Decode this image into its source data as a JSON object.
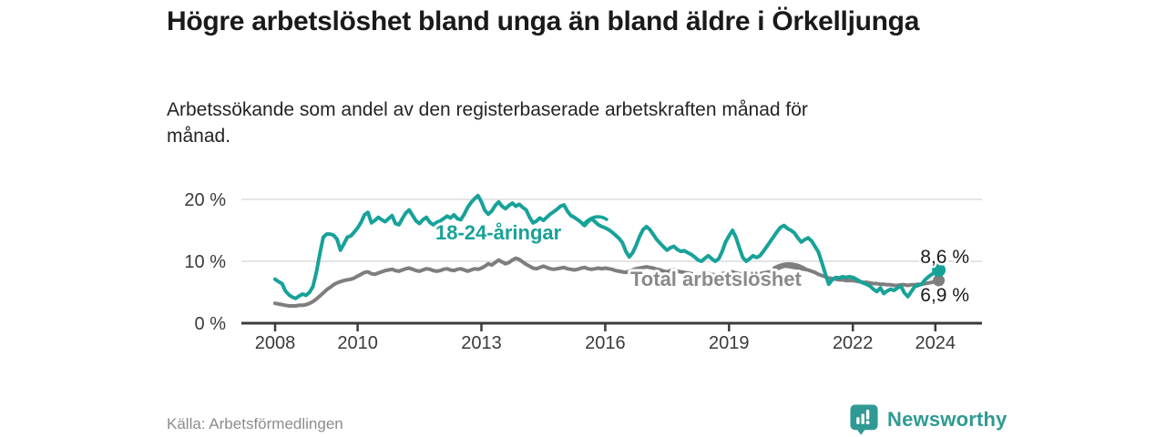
{
  "header": {
    "title": "Högre arbetslöshet bland unga än bland äldre i Örkelljunga",
    "subtitle": "Arbetssökande som andel av den registerbaserade arbetskraften månad för månad."
  },
  "footer": {
    "source": "Källa: Arbetsförmedlingen",
    "brand": "Newsworthy"
  },
  "colors": {
    "accent_teal": "#17A299",
    "line_gray": "#7E7E7E",
    "label_gray": "#8A8A8A",
    "brand_teal": "#2F9A93",
    "text_dark": "#1A1A1A",
    "axis": "#3C3C3C",
    "gridline": "#DBDBDB"
  },
  "chart_data": {
    "type": "line",
    "x_start_year": 2008,
    "x_step_months": 1,
    "x_ticks": [
      2008,
      2010,
      2013,
      2016,
      2019,
      2022,
      2024
    ],
    "y_ticks": [
      {
        "value": 0,
        "label": "0 %"
      },
      {
        "value": 10,
        "label": "10 %"
      },
      {
        "value": 20,
        "label": "20 %"
      }
    ],
    "ylim": [
      0,
      21.5
    ],
    "ylabel": "",
    "xlabel": "",
    "grid": "horizontal",
    "series": [
      {
        "name": "18-24-åringar",
        "color": "#17A299",
        "label_color": "#17A299",
        "end_label": "8,6 %",
        "end_value": 8.6,
        "values": [
          7.1,
          6.7,
          6.4,
          5.2,
          4.6,
          4.2,
          4.0,
          4.4,
          4.7,
          4.5,
          5.0,
          5.9,
          8.2,
          11.2,
          13.9,
          14.4,
          14.4,
          14.2,
          13.6,
          11.8,
          12.8,
          13.9,
          14.1,
          14.7,
          15.4,
          16.3,
          17.5,
          17.9,
          16.2,
          16.6,
          17.1,
          16.7,
          16.4,
          16.9,
          17.4,
          16.1,
          15.9,
          16.9,
          17.8,
          18.3,
          17.4,
          16.5,
          16.1,
          16.7,
          17.1,
          16.3,
          15.9,
          16.3,
          16.5,
          16.9,
          17.3,
          17.0,
          17.5,
          16.9,
          16.7,
          17.6,
          18.7,
          19.5,
          20.1,
          20.6,
          19.6,
          18.2,
          17.6,
          18.1,
          19.0,
          19.6,
          18.9,
          18.5,
          19.0,
          19.4,
          18.9,
          19.2,
          18.7,
          18.3,
          17.1,
          16.2,
          16.5,
          17.0,
          16.6,
          17.1,
          17.6,
          18.0,
          18.4,
          18.9,
          19.1,
          18.1,
          17.4,
          17.1,
          16.7,
          16.3,
          15.8,
          16.4,
          16.9,
          16.4,
          15.9,
          15.6,
          15.4,
          15.1,
          14.7,
          14.2,
          13.7,
          13.0,
          11.6,
          10.7,
          11.4,
          12.6,
          14.0,
          15.1,
          15.6,
          15.1,
          14.3,
          13.5,
          12.9,
          12.3,
          11.8,
          12.2,
          12.4,
          11.9,
          11.6,
          11.7,
          11.4,
          11.1,
          10.7,
          10.2,
          10.0,
          10.5,
          10.9,
          10.4,
          10.0,
          10.4,
          11.6,
          13.1,
          14.1,
          15.0,
          13.9,
          12.2,
          10.6,
          10.0,
          10.4,
          10.9,
          10.6,
          10.9,
          11.6,
          12.4,
          13.2,
          14.0,
          14.8,
          15.5,
          15.8,
          15.3,
          15.0,
          14.6,
          13.8,
          13.1,
          13.5,
          13.8,
          13.3,
          12.4,
          11.5,
          9.8,
          8.0,
          6.3,
          7.0,
          7.4,
          7.3,
          7.5,
          7.4,
          7.5,
          7.4,
          7.1,
          6.8,
          6.5,
          6.3,
          6.0,
          5.5,
          5.1,
          5.7,
          4.8,
          5.2,
          5.5,
          5.3,
          5.7,
          6.0,
          4.9,
          4.3,
          5.1,
          5.9,
          6.1,
          6.3,
          7.0,
          7.5,
          7.9,
          8.2,
          8.6
        ]
      },
      {
        "name": "Total arbetslöshet",
        "color": "#7E7E7E",
        "label_color": "#8A8A8A",
        "end_label": "6,9 %",
        "end_value": 6.9,
        "values": [
          3.2,
          3.1,
          3.0,
          2.9,
          2.8,
          2.8,
          2.8,
          2.9,
          2.9,
          3.0,
          3.2,
          3.5,
          3.9,
          4.4,
          4.9,
          5.4,
          5.8,
          6.2,
          6.5,
          6.7,
          6.9,
          7.0,
          7.1,
          7.3,
          7.6,
          7.9,
          8.2,
          8.3,
          8.0,
          7.9,
          8.1,
          8.3,
          8.5,
          8.6,
          8.7,
          8.5,
          8.4,
          8.6,
          8.8,
          8.9,
          8.7,
          8.5,
          8.4,
          8.6,
          8.8,
          8.7,
          8.5,
          8.4,
          8.5,
          8.7,
          8.8,
          8.6,
          8.5,
          8.7,
          8.8,
          8.6,
          8.4,
          8.6,
          8.8,
          8.7,
          8.9,
          9.2,
          9.6,
          9.4,
          9.8,
          10.2,
          9.9,
          9.6,
          9.8,
          10.2,
          10.5,
          10.3,
          9.9,
          9.5,
          9.2,
          8.9,
          8.8,
          9.0,
          9.2,
          9.0,
          8.8,
          8.7,
          8.8,
          8.9,
          9.0,
          8.8,
          8.7,
          8.6,
          8.7,
          8.9,
          9.0,
          8.8,
          8.7,
          8.8,
          8.9,
          8.8,
          8.9,
          8.8,
          8.7,
          8.5,
          8.4,
          8.3,
          8.2,
          8.4,
          8.6,
          8.8,
          8.9,
          9.0,
          9.1,
          9.0,
          8.9,
          8.7,
          8.6,
          8.4,
          8.3,
          8.5,
          8.6,
          8.4,
          8.3,
          8.2,
          8.1,
          8.0,
          7.9,
          7.8,
          7.7,
          7.9,
          8.0,
          7.9,
          7.8,
          7.9,
          8.0,
          8.1,
          8.2,
          8.3,
          8.1,
          8.0,
          7.9,
          7.8,
          7.9,
          8.0,
          7.9,
          8.0,
          8.1,
          8.2,
          8.3,
          8.5,
          8.8,
          9.0,
          9.2,
          9.2,
          9.1,
          9.0,
          8.9,
          8.8,
          8.7,
          8.6,
          8.4,
          8.2,
          7.9,
          7.7,
          7.5,
          7.3,
          7.2,
          7.1,
          7.0,
          7.0,
          6.9,
          6.9,
          6.9,
          6.8,
          6.7,
          6.6,
          6.6,
          6.5,
          6.4,
          6.4,
          6.3,
          6.3,
          6.2,
          6.2,
          6.1,
          6.1,
          6.2,
          6.2,
          6.1,
          6.2,
          6.2,
          6.3,
          6.3,
          6.4,
          6.5,
          6.6,
          6.7,
          6.9
        ]
      }
    ]
  }
}
